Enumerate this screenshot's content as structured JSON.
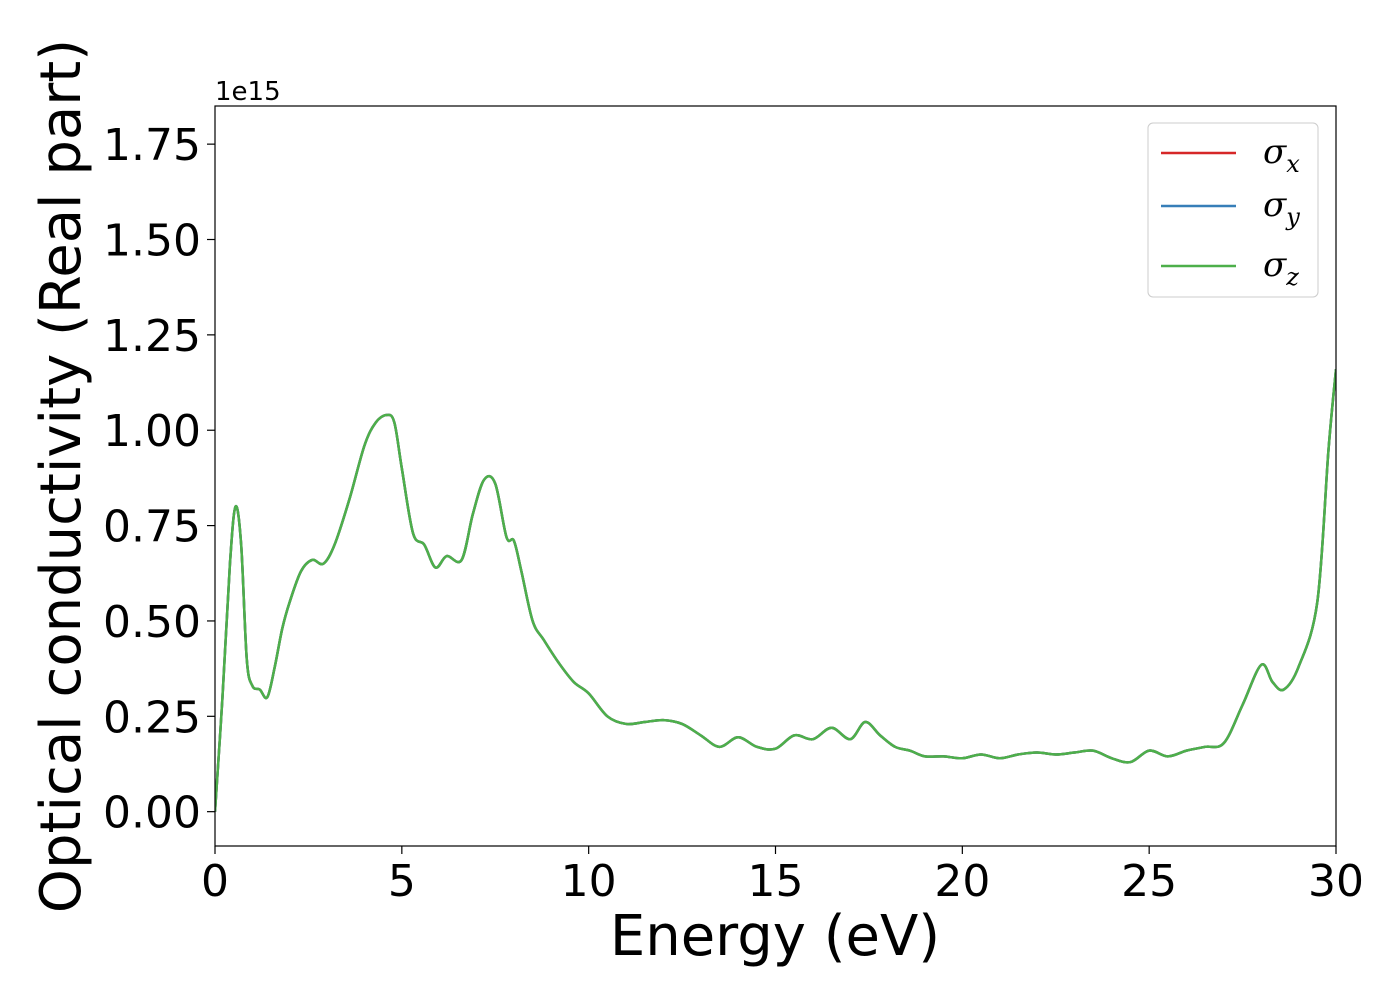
{
  "chart_data": {
    "type": "line",
    "title": "",
    "xlabel": "Energy (eV)",
    "ylabel": "Optical conductivity (Real part)",
    "y_offset_label": "1e15",
    "xlim": [
      0,
      30
    ],
    "ylim": [
      -0.09,
      1.85
    ],
    "xticks": [
      0,
      5,
      10,
      15,
      20,
      25,
      30
    ],
    "xtick_labels": [
      "0",
      "5",
      "10",
      "15",
      "20",
      "25",
      "30"
    ],
    "yticks": [
      0.0,
      0.25,
      0.5,
      0.75,
      1.0,
      1.25,
      1.5,
      1.75
    ],
    "ytick_labels": [
      "0.00",
      "0.25",
      "0.50",
      "0.75",
      "1.00",
      "1.25",
      "1.50",
      "1.75"
    ],
    "grid": false,
    "legend_position": "top-right",
    "x": [
      0,
      0.2,
      0.4,
      0.55,
      0.7,
      0.85,
      1.0,
      1.2,
      1.4,
      1.6,
      1.8,
      2.0,
      2.3,
      2.6,
      2.9,
      3.2,
      3.6,
      4.0,
      4.3,
      4.6,
      4.8,
      5.0,
      5.3,
      5.6,
      5.9,
      6.2,
      6.6,
      6.9,
      7.2,
      7.5,
      7.8,
      8.0,
      8.2,
      8.5,
      8.8,
      9.2,
      9.6,
      10.0,
      10.5,
      11.0,
      11.5,
      12.0,
      12.5,
      13.0,
      13.5,
      14.0,
      14.5,
      15.0,
      15.5,
      16.0,
      16.5,
      17.0,
      17.4,
      17.8,
      18.2,
      18.6,
      19.0,
      19.5,
      20.0,
      20.5,
      21.0,
      21.5,
      22.0,
      22.5,
      23.0,
      23.5,
      24.0,
      24.5,
      25.0,
      25.5,
      26.0,
      26.5,
      27.0,
      27.5,
      28.0,
      28.3,
      28.6,
      29.0,
      29.5,
      29.8,
      30.0
    ],
    "series": [
      {
        "name": "σx",
        "label_base": "σ",
        "label_sub": "x",
        "color": "#d62728",
        "values": [
          0.0,
          0.3,
          0.65,
          0.8,
          0.7,
          0.4,
          0.33,
          0.32,
          0.3,
          0.38,
          0.48,
          0.55,
          0.63,
          0.66,
          0.65,
          0.7,
          0.82,
          0.96,
          1.02,
          1.04,
          1.02,
          0.9,
          0.73,
          0.7,
          0.64,
          0.67,
          0.66,
          0.78,
          0.87,
          0.86,
          0.72,
          0.71,
          0.63,
          0.5,
          0.45,
          0.39,
          0.34,
          0.31,
          0.25,
          0.23,
          0.235,
          0.24,
          0.23,
          0.2,
          0.17,
          0.195,
          0.17,
          0.165,
          0.2,
          0.19,
          0.22,
          0.19,
          0.235,
          0.2,
          0.17,
          0.16,
          0.145,
          0.145,
          0.14,
          0.15,
          0.14,
          0.15,
          0.155,
          0.15,
          0.155,
          0.16,
          0.14,
          0.13,
          0.16,
          0.145,
          0.16,
          0.17,
          0.18,
          0.28,
          0.385,
          0.34,
          0.32,
          0.38,
          0.55,
          0.95,
          1.16
        ]
      },
      {
        "name": "σy",
        "label_base": "σ",
        "label_sub": "y",
        "color": "#377eb8",
        "values": [
          0.0,
          0.3,
          0.65,
          0.8,
          0.7,
          0.4,
          0.33,
          0.32,
          0.3,
          0.38,
          0.48,
          0.55,
          0.63,
          0.66,
          0.65,
          0.7,
          0.82,
          0.96,
          1.02,
          1.04,
          1.02,
          0.9,
          0.73,
          0.7,
          0.64,
          0.67,
          0.66,
          0.78,
          0.87,
          0.86,
          0.72,
          0.71,
          0.63,
          0.5,
          0.45,
          0.39,
          0.34,
          0.31,
          0.25,
          0.23,
          0.235,
          0.24,
          0.23,
          0.2,
          0.17,
          0.195,
          0.17,
          0.165,
          0.2,
          0.19,
          0.22,
          0.19,
          0.235,
          0.2,
          0.17,
          0.16,
          0.145,
          0.145,
          0.14,
          0.15,
          0.14,
          0.15,
          0.155,
          0.15,
          0.155,
          0.16,
          0.14,
          0.13,
          0.16,
          0.145,
          0.16,
          0.17,
          0.18,
          0.28,
          0.385,
          0.34,
          0.32,
          0.38,
          0.55,
          0.95,
          1.16
        ]
      },
      {
        "name": "σz",
        "label_base": "σ",
        "label_sub": "z",
        "color": "#4daf4a",
        "values": [
          0.0,
          0.3,
          0.65,
          0.8,
          0.7,
          0.4,
          0.33,
          0.32,
          0.3,
          0.38,
          0.48,
          0.55,
          0.63,
          0.66,
          0.65,
          0.7,
          0.82,
          0.96,
          1.02,
          1.04,
          1.02,
          0.9,
          0.73,
          0.7,
          0.64,
          0.67,
          0.66,
          0.78,
          0.87,
          0.86,
          0.72,
          0.71,
          0.63,
          0.5,
          0.45,
          0.39,
          0.34,
          0.31,
          0.25,
          0.23,
          0.235,
          0.24,
          0.23,
          0.2,
          0.17,
          0.195,
          0.17,
          0.165,
          0.2,
          0.19,
          0.22,
          0.19,
          0.235,
          0.2,
          0.17,
          0.16,
          0.145,
          0.145,
          0.14,
          0.15,
          0.14,
          0.15,
          0.155,
          0.15,
          0.155,
          0.16,
          0.14,
          0.13,
          0.16,
          0.145,
          0.16,
          0.17,
          0.18,
          0.28,
          0.385,
          0.34,
          0.32,
          0.38,
          0.55,
          0.95,
          1.16
        ]
      }
    ]
  }
}
